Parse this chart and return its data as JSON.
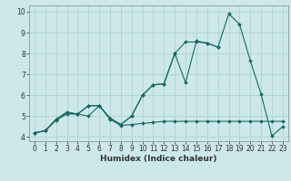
{
  "xlabel": "Humidex (Indice chaleur)",
  "x": [
    0,
    1,
    2,
    3,
    4,
    5,
    6,
    7,
    8,
    9,
    10,
    11,
    12,
    13,
    14,
    15,
    16,
    17,
    18,
    19,
    20,
    21,
    22,
    23
  ],
  "line1_y": [
    4.2,
    4.3,
    4.8,
    5.1,
    5.1,
    5.0,
    5.5,
    4.85,
    4.55,
    4.6,
    4.65,
    4.7,
    4.75,
    4.75,
    4.75,
    4.75,
    4.75,
    4.75,
    4.75,
    4.75,
    4.75,
    4.75,
    4.75,
    4.75
  ],
  "line2_y": [
    4.2,
    4.3,
    4.85,
    5.2,
    5.1,
    5.5,
    5.5,
    4.9,
    4.6,
    5.0,
    6.0,
    6.5,
    6.55,
    8.0,
    6.6,
    8.6,
    8.5,
    8.3,
    null,
    null,
    null,
    null,
    null,
    null
  ],
  "line3_y": [
    4.2,
    4.3,
    4.85,
    5.15,
    5.1,
    5.5,
    5.5,
    4.9,
    4.6,
    5.0,
    6.0,
    6.5,
    6.55,
    8.0,
    8.55,
    8.55,
    8.5,
    8.3,
    9.9,
    9.4,
    7.65,
    6.05,
    4.05,
    4.5
  ],
  "bg_color": "#cce8e8",
  "grid_color": "#aacece",
  "line_color": "#1a6a60",
  "ylim": [
    3.8,
    10.3
  ],
  "xlim": [
    -0.5,
    23.5
  ],
  "yticks": [
    4,
    5,
    6,
    7,
    8,
    9,
    10
  ],
  "xticks": [
    0,
    1,
    2,
    3,
    4,
    5,
    6,
    7,
    8,
    9,
    10,
    11,
    12,
    13,
    14,
    15,
    16,
    17,
    18,
    19,
    20,
    21,
    22,
    23
  ],
  "xlabel_fontsize": 6.5,
  "tick_fontsize": 5.5,
  "marker_size": 2.0,
  "line_width": 0.8
}
